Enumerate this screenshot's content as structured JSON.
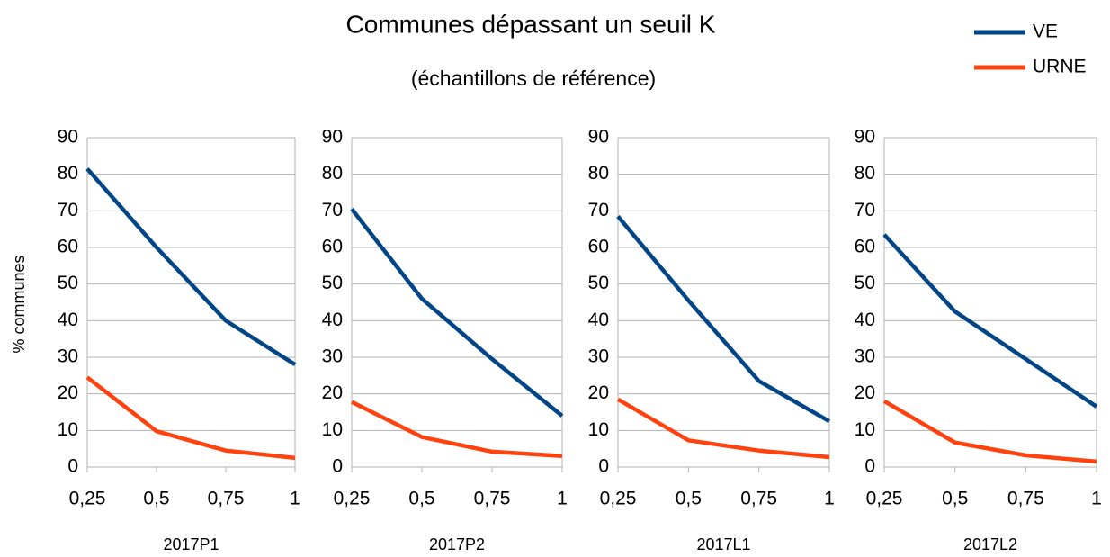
{
  "title": "Communes dépassant un seuil K",
  "subtitle": "(échantillons de référence)",
  "ylabel": "% communes",
  "chart_data": [
    {
      "type": "line",
      "xlabel": "2017P1",
      "categories": [
        "0,25",
        "0,5",
        "0,75",
        "1"
      ],
      "ylim": [
        0,
        90
      ],
      "yticks": [
        0,
        10,
        20,
        30,
        40,
        50,
        60,
        70,
        80,
        90
      ],
      "grid": true,
      "series": [
        {
          "name": "VE",
          "color": "#004586",
          "values": [
            81.5,
            60,
            40,
            28
          ]
        },
        {
          "name": "URNE",
          "color": "#ff420e",
          "values": [
            24.5,
            9.8,
            4.5,
            2.5
          ]
        }
      ]
    },
    {
      "type": "line",
      "xlabel": "2017P2",
      "categories": [
        "0,25",
        "0,5",
        "0,75",
        "1"
      ],
      "ylim": [
        0,
        90
      ],
      "yticks": [
        0,
        10,
        20,
        30,
        40,
        50,
        60,
        70,
        80,
        90
      ],
      "grid": true,
      "series": [
        {
          "name": "VE",
          "color": "#004586",
          "values": [
            70.5,
            46,
            29.5,
            14
          ]
        },
        {
          "name": "URNE",
          "color": "#ff420e",
          "values": [
            17.8,
            8.2,
            4.2,
            3
          ]
        }
      ]
    },
    {
      "type": "line",
      "xlabel": "2017L1",
      "categories": [
        "0,25",
        "0,5",
        "0,75",
        "1"
      ],
      "ylim": [
        0,
        90
      ],
      "yticks": [
        0,
        10,
        20,
        30,
        40,
        50,
        60,
        70,
        80,
        90
      ],
      "grid": true,
      "series": [
        {
          "name": "VE",
          "color": "#004586",
          "values": [
            68.5,
            45.5,
            23.5,
            12.5
          ]
        },
        {
          "name": "URNE",
          "color": "#ff420e",
          "values": [
            18.5,
            7.3,
            4.5,
            2.7
          ]
        }
      ]
    },
    {
      "type": "line",
      "xlabel": "2017L2",
      "categories": [
        "0,25",
        "0,5",
        "0,75",
        "1"
      ],
      "ylim": [
        0,
        90
      ],
      "yticks": [
        0,
        10,
        20,
        30,
        40,
        50,
        60,
        70,
        80,
        90
      ],
      "grid": true,
      "series": [
        {
          "name": "VE",
          "color": "#004586",
          "values": [
            63.5,
            42.5,
            29.5,
            16.5
          ]
        },
        {
          "name": "URNE",
          "color": "#ff420e",
          "values": [
            18,
            6.7,
            3.2,
            1.5
          ]
        }
      ]
    }
  ]
}
